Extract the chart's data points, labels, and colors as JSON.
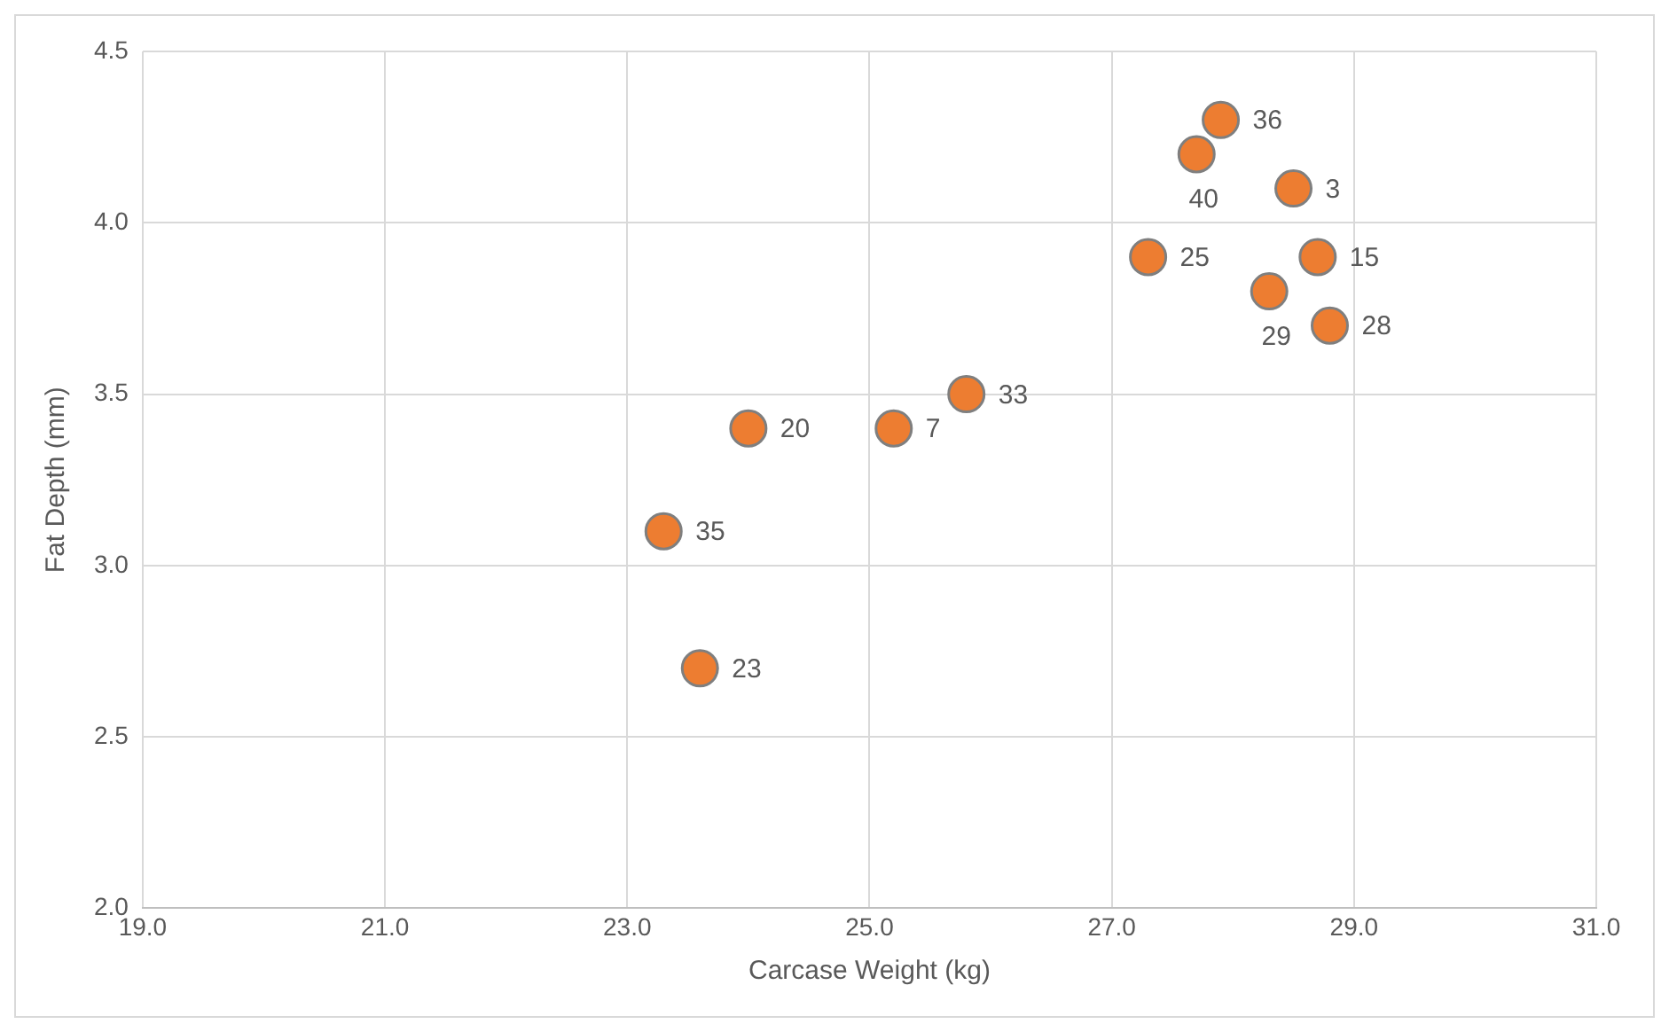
{
  "chart_data": {
    "type": "scatter",
    "xlabel": "Carcase Weight (kg)",
    "ylabel": "Fat Depth (mm)",
    "x": [
      27.9,
      27.7,
      28.5,
      27.3,
      28.7,
      28.3,
      28.8,
      25.8,
      25.2,
      24.0,
      23.3,
      23.6
    ],
    "values": [
      4.3,
      4.2,
      4.1,
      3.9,
      3.9,
      3.8,
      3.7,
      3.5,
      3.4,
      3.4,
      3.1,
      2.7
    ],
    "annotations": [
      {
        "text": "36",
        "x": 27.9,
        "y": 4.3
      },
      {
        "text": "40",
        "x": 27.7,
        "y": 4.2
      },
      {
        "text": "3",
        "x": 28.5,
        "y": 4.1
      },
      {
        "text": "25",
        "x": 27.3,
        "y": 3.9
      },
      {
        "text": "15",
        "x": 28.7,
        "y": 3.9
      },
      {
        "text": "29",
        "x": 28.3,
        "y": 3.8
      },
      {
        "text": "28",
        "x": 28.8,
        "y": 3.7
      },
      {
        "text": "33",
        "x": 25.8,
        "y": 3.5
      },
      {
        "text": "7",
        "x": 25.2,
        "y": 3.4
      },
      {
        "text": "20",
        "x": 24.0,
        "y": 3.4
      },
      {
        "text": "35",
        "x": 23.3,
        "y": 3.1
      },
      {
        "text": "23",
        "x": 23.6,
        "y": 2.7
      }
    ],
    "color": "#ed7d31",
    "marker": "circle",
    "grid": true,
    "xlim": [
      19,
      31
    ],
    "xticks": [
      {
        "value": 19,
        "label": "19.0"
      },
      {
        "value": 21,
        "label": "21.0"
      },
      {
        "value": 23,
        "label": "23.0"
      },
      {
        "value": 25,
        "label": "25.0"
      },
      {
        "value": 27,
        "label": "27.0"
      },
      {
        "value": 29,
        "label": "29.0"
      },
      {
        "value": 31,
        "label": "31.0"
      }
    ],
    "ylim": [
      2,
      4.5
    ],
    "yticks": [
      {
        "value": 2,
        "label": "2.0"
      },
      {
        "value": 2.5,
        "label": "2.5"
      },
      {
        "value": 3,
        "label": "3.0"
      },
      {
        "value": 3.5,
        "label": "3.5"
      },
      {
        "value": 4,
        "label": "4.0"
      },
      {
        "value": 4.5,
        "label": "4.5"
      }
    ]
  }
}
